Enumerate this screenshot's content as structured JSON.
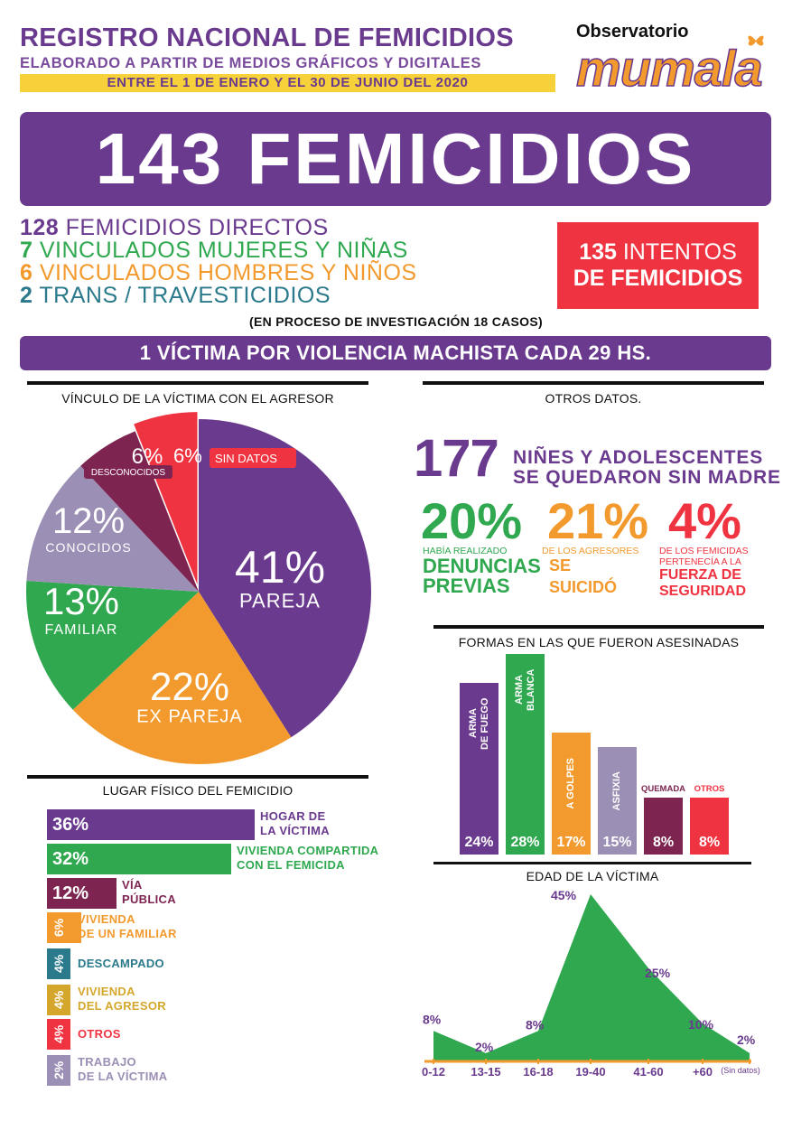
{
  "header": {
    "title": "REGISTRO NACIONAL DE FEMICIDIOS",
    "subtitle": "ELABORADO A PARTIR DE MEDIOS GRÁFICOS Y DIGITALES",
    "period": "ENTRE EL 1 DE ENERO Y EL 30 DE JUNIO DEL 2020",
    "logo_top": "Observatorio",
    "logo_main": "mumala"
  },
  "headline": "143 FEMICIDIOS",
  "breakdown": [
    {
      "num": "128",
      "text": " FEMICIDIOS DIRECTOS",
      "color": "#6a3a8e"
    },
    {
      "num": "7",
      "text": " VINCULADOS MUJERES Y NIÑAS",
      "color": "#2fa84f"
    },
    {
      "num": "6",
      "text": " VINCULADOS HOMBRES Y NIÑOS",
      "color": "#f39a2e"
    },
    {
      "num": "2",
      "text": " TRANS / TRAVESTICIDIOS",
      "color": "#2b7a8c"
    }
  ],
  "attempts": {
    "line1_num": "135",
    "line1_text": " INTENTOS",
    "line2": "DE FEMICIDIOS"
  },
  "investigation_note": "(EN PROCESO DE INVESTIGACIÓN 18 CASOS)",
  "banner": "1 VÍCTIMA POR VIOLENCIA MACHISTA CADA 29 HS.",
  "other_data": {
    "title": "OTROS DATOS.",
    "children_num": "177",
    "children_line1": "NIÑES Y ADOLESCENTES",
    "children_line2": "SE QUEDARON SIN MADRE",
    "stat1": {
      "value": "20%",
      "small": "HABÍA REALIZADO",
      "big1": "DENUNCIAS",
      "big2": "PREVIAS"
    },
    "stat2": {
      "value": "21%",
      "small": "DE LOS AGRESORES",
      "big1": "SE",
      "big2": "SUICIDÓ"
    },
    "stat3": {
      "value": "4%",
      "small1": "DE LOS FEMICIDAS",
      "small2": "PERTENECÍA A LA",
      "big1": "FUERZA DE",
      "big2": "SEGURIDAD"
    }
  },
  "chart_data": [
    {
      "type": "pie",
      "title": "VÍNCULO DE LA VÍCTIMA CON EL AGRESOR",
      "slices": [
        {
          "label": "PAREJA",
          "value": 41,
          "display": "41%",
          "color": "#6a3a8e"
        },
        {
          "label": "EX PAREJA",
          "value": 22,
          "display": "22%",
          "color": "#f39a2e"
        },
        {
          "label": "FAMILIAR",
          "value": 13,
          "display": "13%",
          "color": "#2fa84f"
        },
        {
          "label": "CONOCIDOS",
          "value": 12,
          "display": "12%",
          "color": "#9b8fb5"
        },
        {
          "label": "DESCONOCIDOS",
          "value": 6,
          "display": "6%",
          "color": "#7d2450"
        },
        {
          "label": "SIN DATOS",
          "value": 6,
          "display": "6%",
          "color": "#ef3340"
        }
      ]
    },
    {
      "type": "bar",
      "orientation": "horizontal",
      "title": "LUGAR FÍSICO DEL FEMICIDIO",
      "items": [
        {
          "display": "36%",
          "value": 36,
          "label1": "HOGAR DE",
          "label2": "LA VÍCTIMA",
          "color": "#6a3a8e"
        },
        {
          "display": "32%",
          "value": 32,
          "label1": "VIVIENDA COMPARTIDA",
          "label2": "CON EL FEMICIDA",
          "color": "#2fa84f"
        },
        {
          "display": "12%",
          "value": 12,
          "label1": "VÍA",
          "label2": "PÚBLICA",
          "color": "#7d2450"
        },
        {
          "display": "6%",
          "value": 6,
          "label1": "VIVIENDA",
          "label2": "DE UN FAMILIAR",
          "color": "#f39a2e"
        },
        {
          "display": "4%",
          "value": 4,
          "label1": "DESCAMPADO",
          "label2": "",
          "color": "#2b7a8c"
        },
        {
          "display": "4%",
          "value": 4,
          "label1": "VIVIENDA",
          "label2": "DEL AGRESOR",
          "color": "#d4a72c"
        },
        {
          "display": "4%",
          "value": 4,
          "label1": "OTROS",
          "label2": "",
          "color": "#ef3340"
        },
        {
          "display": "2%",
          "value": 2,
          "label1": "TRABAJO",
          "label2": "DE LA VÍCTIMA",
          "color": "#9b8fb5"
        }
      ]
    },
    {
      "type": "bar",
      "orientation": "vertical",
      "title": "FORMAS EN LAS QUE FUERON ASESINADAS",
      "items": [
        {
          "label1": "ARMA",
          "label2": "DE FUEGO",
          "value": 24,
          "display": "24%",
          "color": "#6a3a8e",
          "label_position": "inside"
        },
        {
          "label1": "ARMA",
          "label2": "BLANCA",
          "value": 28,
          "display": "28%",
          "color": "#2fa84f",
          "label_position": "inside"
        },
        {
          "label1": "A GOLPES",
          "label2": "",
          "value": 17,
          "display": "17%",
          "color": "#f39a2e",
          "label_position": "inside"
        },
        {
          "label1": "ASFIXIA",
          "label2": "",
          "value": 15,
          "display": "15%",
          "color": "#9b8fb5",
          "label_position": "inside"
        },
        {
          "label1": "QUEMADA",
          "label2": "",
          "value": 8,
          "display": "8%",
          "color": "#7d2450",
          "label_position": "above"
        },
        {
          "label1": "OTROS",
          "label2": "",
          "value": 8,
          "display": "8%",
          "color": "#ef3340",
          "label_position": "above"
        }
      ]
    },
    {
      "type": "area",
      "title": "EDAD DE LA VÍCTIMA",
      "categories": [
        "0-12",
        "13-15",
        "16-18",
        "19-40",
        "41-60",
        "+60",
        "(Sin datos)"
      ],
      "values": [
        8,
        2,
        8,
        45,
        25,
        10,
        2
      ],
      "display": [
        "8%",
        "2%",
        "8%",
        "45%",
        "25%",
        "10%",
        "2%"
      ],
      "color": "#2fa84f"
    }
  ]
}
